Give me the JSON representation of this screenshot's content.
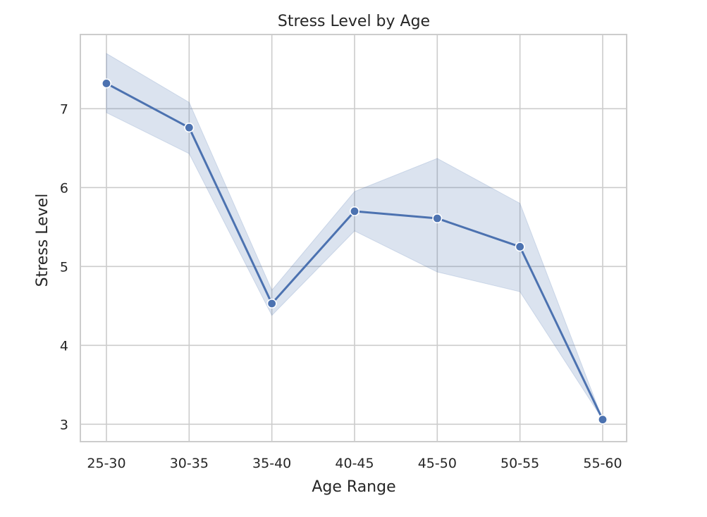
{
  "chart_data": {
    "type": "line",
    "title": "Stress Level by Age",
    "xlabel": "Age Range",
    "ylabel": "Stress Level",
    "categories": [
      "25-30",
      "30-35",
      "35-40",
      "40-45",
      "45-50",
      "50-55",
      "55-60"
    ],
    "series": [
      {
        "values": [
          7.32,
          6.76,
          4.53,
          5.7,
          5.61,
          5.25,
          3.06
        ],
        "ci_upper": [
          7.7,
          7.08,
          4.7,
          5.95,
          6.37,
          5.8,
          3.06
        ],
        "ci_lower": [
          6.95,
          6.43,
          4.38,
          5.45,
          4.93,
          4.68,
          3.06
        ],
        "color": "#4c72b0",
        "band_color": "#4c72b0",
        "marker": "circle"
      }
    ],
    "yticks": [
      3,
      4,
      5,
      6,
      7
    ],
    "ylim": [
      2.78,
      7.94
    ],
    "grid": true,
    "legend": "none"
  }
}
